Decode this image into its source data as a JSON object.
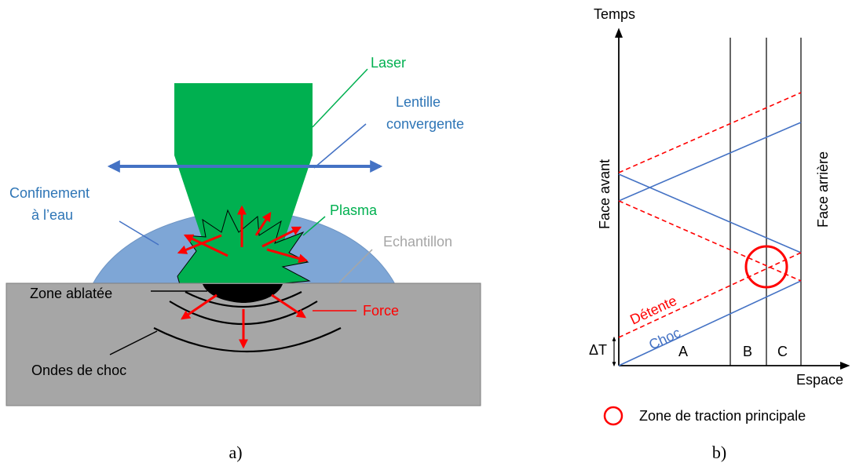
{
  "panel_a": {
    "caption": "a)",
    "labels": {
      "laser": "Laser",
      "lens_line1": "Lentille",
      "lens_line2": "convergente",
      "confinement_line1": "Confinement",
      "confinement_line2": "à l’eau",
      "plasma": "Plasma",
      "sample": "Echantillon",
      "ablated_zone": "Zone ablatée",
      "force": "Force",
      "shock_waves": "Ondes de choc"
    },
    "colors": {
      "laser": "#00b050",
      "lens": "#4472c4",
      "water": "#7ea6d6",
      "sample": "#a6a6a6",
      "force": "#ff0000",
      "text_blue": "#2e75b6",
      "text_gray": "#a6a6a6"
    }
  },
  "panel_b": {
    "caption": "b)",
    "axis": {
      "y_label": "Temps",
      "x_label": "Espace"
    },
    "labels": {
      "front_face": "Face avant",
      "rear_face": "Face arrière",
      "release": "Détente",
      "shock": "Choc",
      "delta_t": "ΔT",
      "region_a": "A",
      "region_b": "B",
      "region_c": "C"
    },
    "legend": {
      "text": "Zone de traction principale"
    },
    "colors": {
      "shock": "#4472c4",
      "release": "#ff0000",
      "circle": "#ff0000"
    }
  }
}
